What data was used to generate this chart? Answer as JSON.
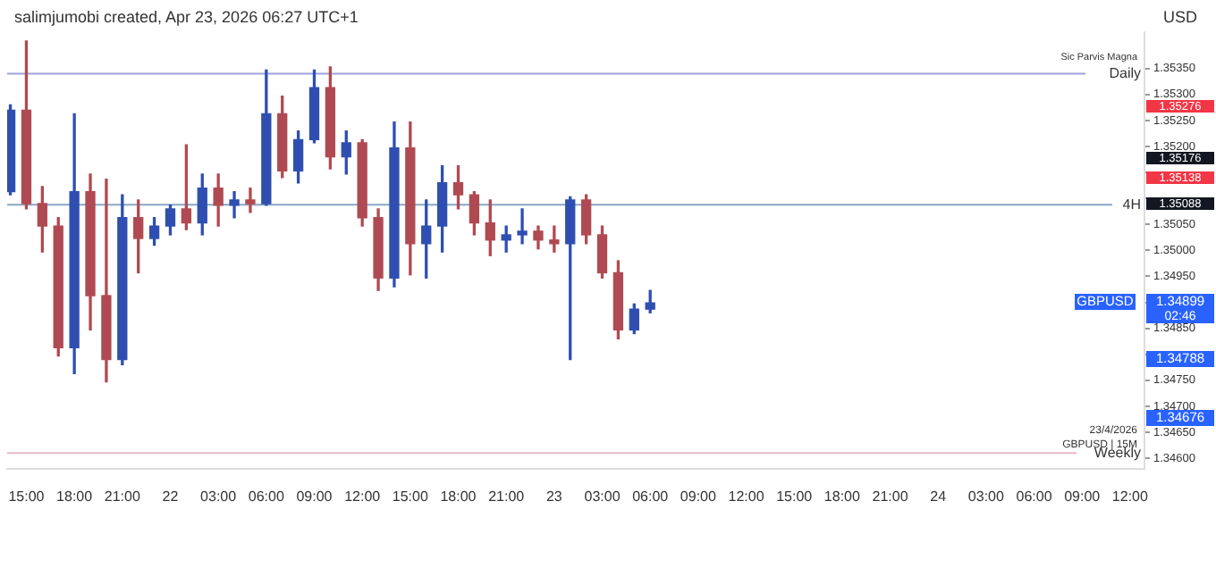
{
  "chart_data": {
    "type": "candlestick",
    "ylabel": "USD",
    "x": [
      "2026-04-21T14:00",
      "2026-04-21T15:00",
      "2026-04-21T16:00",
      "2026-04-21T17:00",
      "2026-04-21T18:00",
      "2026-04-21T19:00",
      "2026-04-21T20:00",
      "2026-04-21T21:00",
      "2026-04-21T22:00",
      "2026-04-21T23:00",
      "2026-04-22T00:00",
      "2026-04-22T01:00",
      "2026-04-22T02:00",
      "2026-04-22T03:00",
      "2026-04-22T04:00",
      "2026-04-22T05:00",
      "2026-04-22T06:00",
      "2026-04-22T07:00",
      "2026-04-22T08:00",
      "2026-04-22T09:00",
      "2026-04-22T10:00",
      "2026-04-22T11:00",
      "2026-04-22T12:00",
      "2026-04-22T13:00",
      "2026-04-22T14:00",
      "2026-04-22T15:00",
      "2026-04-22T16:00",
      "2026-04-22T17:00",
      "2026-04-22T18:00",
      "2026-04-22T19:00",
      "2026-04-22T20:00",
      "2026-04-22T21:00",
      "2026-04-22T22:00",
      "2026-04-22T23:00",
      "2026-04-23T00:00",
      "2026-04-23T01:00",
      "2026-04-23T02:00",
      "2026-04-23T03:00",
      "2026-04-23T04:00",
      "2026-04-23T05:00",
      "2026-04-23T06:00"
    ],
    "ohlc": [
      [
        1.35113,
        1.3528,
        1.35107,
        1.3527
      ],
      [
        1.3527,
        1.35403,
        1.3508,
        1.3509
      ],
      [
        1.3509,
        1.35123,
        1.34997,
        1.35047
      ],
      [
        1.35047,
        1.35063,
        1.34797,
        1.34813
      ],
      [
        1.34813,
        1.35263,
        1.34763,
        1.35113
      ],
      [
        1.35113,
        1.35147,
        1.34847,
        1.34913
      ],
      [
        1.34913,
        1.35137,
        1.34747,
        1.3479
      ],
      [
        1.3479,
        1.35107,
        1.3478,
        1.35063
      ],
      [
        1.35063,
        1.35097,
        1.34957,
        1.35023
      ],
      [
        1.35023,
        1.35063,
        1.3501,
        1.35047
      ],
      [
        1.35047,
        1.35087,
        1.3503,
        1.3508
      ],
      [
        1.3508,
        1.35203,
        1.3504,
        1.35053
      ],
      [
        1.35053,
        1.35147,
        1.3503,
        1.3512
      ],
      [
        1.3512,
        1.35147,
        1.35047,
        1.35087
      ],
      [
        1.35087,
        1.35113,
        1.35063,
        1.35097
      ],
      [
        1.35097,
        1.3512,
        1.35073,
        1.3509
      ],
      [
        1.3509,
        1.35347,
        1.35087,
        1.35263
      ],
      [
        1.35263,
        1.35297,
        1.3514,
        1.35153
      ],
      [
        1.35153,
        1.3523,
        1.3513,
        1.35213
      ],
      [
        1.35213,
        1.35347,
        1.35207,
        1.35313
      ],
      [
        1.35313,
        1.35353,
        1.35157,
        1.3518
      ],
      [
        1.3518,
        1.3523,
        1.35147,
        1.35207
      ],
      [
        1.35207,
        1.35213,
        1.35047,
        1.35063
      ],
      [
        1.35063,
        1.3508,
        1.34923,
        1.34947
      ],
      [
        1.34947,
        1.35247,
        1.3493,
        1.35197
      ],
      [
        1.35197,
        1.35247,
        1.34953,
        1.35013
      ],
      [
        1.35013,
        1.35097,
        1.34947,
        1.35047
      ],
      [
        1.35047,
        1.35163,
        1.34997,
        1.3513
      ],
      [
        1.3513,
        1.35163,
        1.3508,
        1.35107
      ],
      [
        1.35107,
        1.35113,
        1.3503,
        1.35053
      ],
      [
        1.35053,
        1.35097,
        1.3499,
        1.3502
      ],
      [
        1.3502,
        1.35047,
        1.34997,
        1.3503
      ],
      [
        1.3503,
        1.3508,
        1.35013,
        1.35037
      ],
      [
        1.35037,
        1.35047,
        1.35003,
        1.3502
      ],
      [
        1.3502,
        1.35047,
        1.34997,
        1.35013
      ],
      [
        1.35013,
        1.35103,
        1.3479,
        1.35097
      ],
      [
        1.35097,
        1.35107,
        1.35013,
        1.3503
      ],
      [
        1.3503,
        1.35047,
        1.34947,
        1.34957
      ],
      [
        1.34957,
        1.3498,
        1.3483,
        1.34847
      ],
      [
        1.34847,
        1.34897,
        1.3484,
        1.34887
      ],
      [
        1.34887,
        1.34923,
        1.3488,
        1.34899
      ]
    ],
    "xlim": [
      "2026-04-21T13:48",
      "2026-04-24T12:54"
    ],
    "xticks": [
      {
        "value": "2026-04-21T15:00",
        "label": "15:00"
      },
      {
        "value": "2026-04-21T18:00",
        "label": "18:00"
      },
      {
        "value": "2026-04-21T21:00",
        "label": "21:00"
      },
      {
        "value": "2026-04-22T00:00",
        "label": "22"
      },
      {
        "value": "2026-04-22T03:00",
        "label": "03:00"
      },
      {
        "value": "2026-04-22T06:00",
        "label": "06:00"
      },
      {
        "value": "2026-04-22T09:00",
        "label": "09:00"
      },
      {
        "value": "2026-04-22T12:00",
        "label": "12:00"
      },
      {
        "value": "2026-04-22T15:00",
        "label": "15:00"
      },
      {
        "value": "2026-04-22T18:00",
        "label": "18:00"
      },
      {
        "value": "2026-04-22T21:00",
        "label": "21:00"
      },
      {
        "value": "2026-04-23T00:00",
        "label": "23"
      },
      {
        "value": "2026-04-23T03:00",
        "label": "03:00"
      },
      {
        "value": "2026-04-23T06:00",
        "label": "06:00"
      },
      {
        "value": "2026-04-23T09:00",
        "label": "09:00"
      },
      {
        "value": "2026-04-23T12:00",
        "label": "12:00"
      },
      {
        "value": "2026-04-23T15:00",
        "label": "15:00"
      },
      {
        "value": "2026-04-23T18:00",
        "label": "18:00"
      },
      {
        "value": "2026-04-23T21:00",
        "label": "21:00"
      },
      {
        "value": "2026-04-24T00:00",
        "label": "24"
      },
      {
        "value": "2026-04-24T03:00",
        "label": "03:00"
      },
      {
        "value": "2026-04-24T06:00",
        "label": "06:00"
      },
      {
        "value": "2026-04-24T09:00",
        "label": "09:00"
      },
      {
        "value": "2026-04-24T12:00",
        "label": "12:00"
      }
    ],
    "ylim": [
      1.3458,
      1.3542
    ],
    "yticks": [
      {
        "value": 1.346,
        "label": "1.34600"
      },
      {
        "value": 1.3465,
        "label": "1.34650"
      },
      {
        "value": 1.347,
        "label": "1.34700"
      },
      {
        "value": 1.3475,
        "label": "1.34750"
      },
      {
        "value": 1.348,
        "label": null
      },
      {
        "value": 1.3485,
        "label": "1.34850"
      },
      {
        "value": 1.349,
        "label": null
      },
      {
        "value": 1.3495,
        "label": "1.34950"
      },
      {
        "value": 1.35,
        "label": "1.35000"
      },
      {
        "value": 1.3505,
        "label": "1.35050"
      },
      {
        "value": 1.351,
        "label": null
      },
      {
        "value": 1.3515,
        "label": null
      },
      {
        "value": 1.352,
        "label": "1.35200"
      },
      {
        "value": 1.3525,
        "label": "1.35250"
      },
      {
        "value": 1.353,
        "label": "1.35300"
      },
      {
        "value": 1.3535,
        "label": "1.35350"
      }
    ],
    "ref_lines": [
      {
        "axis": "y",
        "value": 1.3534,
        "label": "Daily",
        "color": "#9ea3dc"
      },
      {
        "axis": "y",
        "value": 1.35088,
        "label": "4H",
        "color": "#8aa6c8"
      },
      {
        "axis": "y",
        "value": 1.3461,
        "label": "Weekly",
        "color": "#e6b8c6"
      }
    ],
    "annotations": [
      "salimjumobi created, Apr 23, 2026 06:27 UTC+1",
      "Sic Parvis Magna",
      "23/4/2026",
      "GBPUSD | 15M",
      "02:46",
      "1.35276",
      "1.35176",
      "1.35138",
      "1.35088",
      "1.34899",
      "GBPUSD",
      "1.34788",
      "1.34676"
    ]
  }
}
